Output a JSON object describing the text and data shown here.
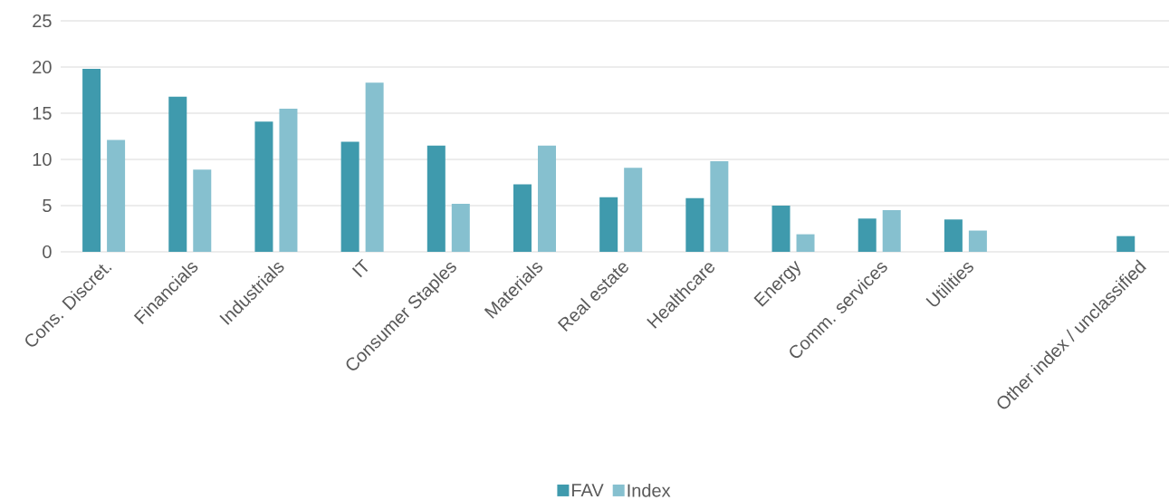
{
  "chart_data": {
    "type": "bar",
    "categories": [
      "Cons. Discret.",
      "Financials",
      "Industrials",
      "IT",
      "Consumer Staples",
      "Materials",
      "Real estate",
      "Healthcare",
      "Energy",
      "Comm. services",
      "Utilities",
      null,
      "Other index / unclassified"
    ],
    "series": [
      {
        "name": "FAV",
        "color": "#3f9aad",
        "values": [
          19.8,
          16.8,
          14.1,
          11.9,
          11.5,
          7.3,
          5.9,
          5.8,
          5.0,
          3.6,
          3.5,
          null,
          1.7
        ]
      },
      {
        "name": "Index",
        "color": "#86c0cf",
        "values": [
          12.1,
          8.9,
          15.5,
          18.3,
          5.2,
          11.5,
          9.1,
          9.8,
          1.9,
          4.5,
          2.3,
          null,
          null
        ]
      }
    ],
    "ylim": [
      0,
      25
    ],
    "yticks": [
      0,
      5,
      10,
      15,
      20,
      25
    ],
    "grid": "y",
    "legend": "bottom"
  }
}
